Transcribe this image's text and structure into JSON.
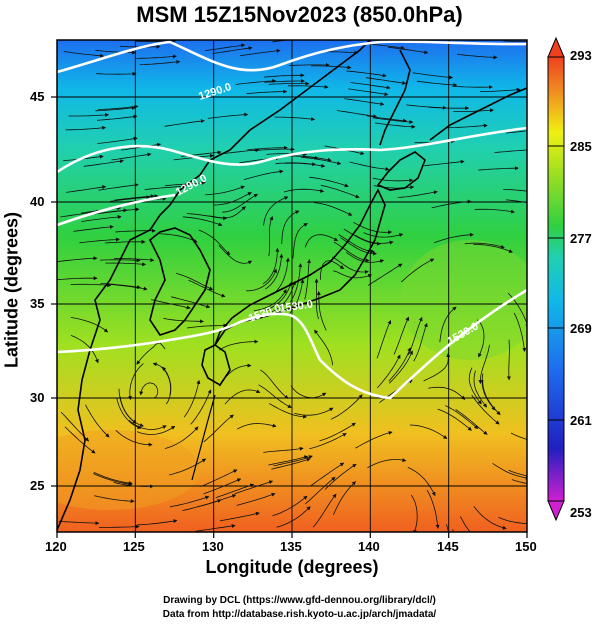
{
  "title": "MSM 15Z15Nov2023 (850.0hPa)",
  "axes": {
    "xlabel": "Longitude (degrees)",
    "ylabel": "Latitude  (degrees)",
    "xticks": [
      "120",
      "125",
      "130",
      "135",
      "140",
      "145",
      "150"
    ],
    "yticks": [
      "45",
      "40",
      "35",
      "30",
      "25"
    ]
  },
  "colorbar": {
    "ticks": [
      "293",
      "285",
      "277",
      "269",
      "261",
      "253"
    ],
    "min": 253,
    "max": 293,
    "colors": [
      "#d020d0",
      "#2020c0",
      "#1e6ef0",
      "#10b8e8",
      "#20d0b0",
      "#30d040",
      "#a0e020",
      "#f0f010",
      "#f09020",
      "#f04020"
    ]
  },
  "contour_labels": [
    "1290.0",
    "1290.0",
    "1530.0",
    "1530.0",
    "1530.0"
  ],
  "credits": {
    "line1": "Drawing by DCL (https://www.gfd-dennou.org/library/dcl/)",
    "line2": "Data from http://database.rish.kyoto-u.ac.jp/arch/jmadata/"
  },
  "chart_data": {
    "type": "heatmap",
    "title": "MSM 15Z15Nov2023 (850.0hPa)",
    "xlabel": "Longitude (degrees)",
    "ylabel": "Latitude  (degrees)",
    "xlim": [
      120,
      150
    ],
    "ylim": [
      22.4,
      47.6
    ],
    "color_range": [
      253,
      293
    ],
    "x_ticks": [
      120,
      125,
      130,
      135,
      140,
      145,
      150
    ],
    "y_ticks": [
      25,
      30,
      35,
      40,
      45
    ],
    "grid": true,
    "overlays": [
      "streamlines",
      "coastlines",
      "white contour lines (1290.0, 1530.0)"
    ]
  }
}
